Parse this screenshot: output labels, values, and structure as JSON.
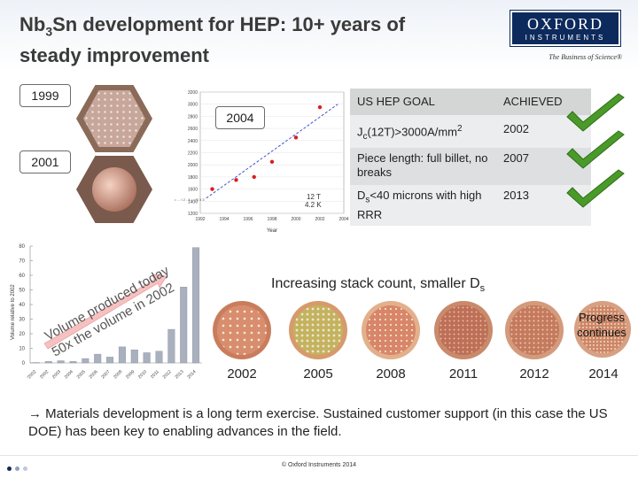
{
  "header": {
    "title_line1_pre": "Nb",
    "title_sub3": "3",
    "title_line1_post": "Sn development for HEP: 10+ years of",
    "title_line2": "steady improvement",
    "logo_main": "OXFORD",
    "logo_sub": "INSTRUMENTS",
    "tagline": "The Business of Science®"
  },
  "callouts": {
    "y1999": "1999",
    "y2001": "2001",
    "y2004": "2004"
  },
  "goal_table": {
    "col_goal": "US HEP GOAL",
    "col_achieved": "ACHIEVED",
    "rows": [
      {
        "goal_pre": "J",
        "goal_sub": "c",
        "goal_mid": "(12T)>3000A/mm",
        "goal_sup": "2",
        "achieved": "2002"
      },
      {
        "goal": "Piece length: full billet, no breaks",
        "achieved": "2007"
      },
      {
        "goal_pre": "D",
        "goal_sub": "s",
        "goal_post": "<40 microns with high RRR",
        "achieved": "2013"
      }
    ],
    "check_color": "#4a9a2a"
  },
  "chart_data": [
    {
      "type": "scatter",
      "title": "",
      "xlabel": "Year",
      "ylabel": "",
      "x_ticks": [
        "1992",
        "1994",
        "1996",
        "1998",
        "2000",
        "2002",
        "2004"
      ],
      "y_ticks": [
        "1200",
        "1400",
        "1600",
        "1800",
        "2000",
        "2200",
        "2400",
        "2600",
        "2800",
        "3000",
        "3200"
      ],
      "xlim": [
        1992,
        2004
      ],
      "ylim": [
        1200,
        3200
      ],
      "annotation_lines": [
        "12 T",
        "4.2 K"
      ],
      "legend_note": "Jc (Tm) = ... t 2 - 1 ... (3 3 3",
      "series": [
        {
          "name": "measured",
          "x": [
            1993,
            1995,
            1996.5,
            1998,
            2000,
            2002
          ],
          "y": [
            1600,
            1750,
            1800,
            2050,
            2450,
            2950
          ],
          "color": "#d62020"
        }
      ],
      "trend": {
        "x": [
          1992.5,
          2003.5
        ],
        "y": [
          1450,
          3000
        ],
        "color": "#4455cc"
      }
    },
    {
      "type": "bar",
      "title": "",
      "ylabel": "Volume relative to 2002",
      "categories": [
        "pre-2002",
        "2002",
        "2003",
        "2004",
        "2005",
        "2006",
        "2007",
        "2008",
        "2009",
        "2010",
        "2011",
        "2012",
        "2013",
        "2014"
      ],
      "category_labels": [
        "'2002",
        "2002",
        "2003",
        "2004",
        "2005",
        "2006",
        "2007",
        "2008",
        "2009",
        "2010",
        "2011",
        "2012",
        "2013",
        "2014"
      ],
      "values": [
        0.3,
        1,
        1.5,
        1,
        3,
        6,
        4,
        11,
        9,
        7,
        8,
        23,
        52,
        79
      ],
      "y_ticks": [
        "0",
        "10",
        "20",
        "30",
        "40",
        "50",
        "60",
        "70",
        "80"
      ],
      "ylim": [
        0,
        80
      ],
      "annotation_line1": "Volume produced today",
      "annotation_line2": "50x the volume in 2002",
      "bar_color": "#a9b0be"
    }
  ],
  "stack": {
    "caption_pre": "Increasing stack count, smaller D",
    "caption_sub": "s",
    "progress_label": "Progress continues",
    "years": [
      "2002",
      "2005",
      "2008",
      "2011",
      "2012",
      "2014"
    ]
  },
  "footer": {
    "takeaway": "→ Materials development is a long term exercise.  Sustained customer support (in this case the US DOE) has been key to enabling advances in the field.",
    "copyright": "© Oxford Instruments 2014",
    "dot_colors": [
      "#0d2a5c",
      "#8fa0c0",
      "#c0c8d8"
    ]
  }
}
